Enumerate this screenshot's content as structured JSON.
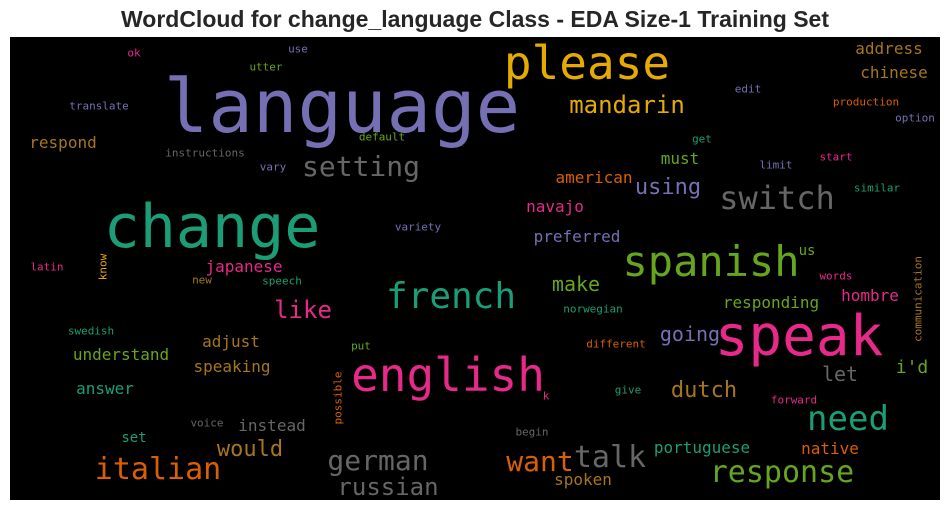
{
  "chart_data": {
    "type": "wordcloud",
    "title": "WordCloud for change_language Class - EDA Size-1 Training Set",
    "background": "#000000",
    "words": [
      {
        "text": "language",
        "color": "#7570b3"
      },
      {
        "text": "please",
        "color": "#e6ab02"
      },
      {
        "text": "change",
        "color": "#1b9e77"
      },
      {
        "text": "speak",
        "color": "#e7298a"
      },
      {
        "text": "english",
        "color": "#e7298a"
      },
      {
        "text": "spanish",
        "color": "#66a61e"
      },
      {
        "text": "french",
        "color": "#1b9e77"
      },
      {
        "text": "switch",
        "color": "#666666"
      },
      {
        "text": "setting",
        "color": "#666666"
      },
      {
        "text": "mandarin",
        "color": "#e6ab02"
      },
      {
        "text": "italian",
        "color": "#d95f02"
      },
      {
        "text": "need",
        "color": "#1b9e77"
      },
      {
        "text": "response",
        "color": "#66a61e"
      },
      {
        "text": "german",
        "color": "#666666"
      },
      {
        "text": "russian",
        "color": "#666666"
      },
      {
        "text": "want",
        "color": "#d95f02"
      },
      {
        "text": "talk",
        "color": "#666666"
      },
      {
        "text": "would",
        "color": "#a6761d"
      },
      {
        "text": "like",
        "color": "#e7298a"
      },
      {
        "text": "using",
        "color": "#7570b3"
      },
      {
        "text": "dutch",
        "color": "#a6761d"
      },
      {
        "text": "make",
        "color": "#66a61e"
      },
      {
        "text": "going",
        "color": "#7570b3"
      },
      {
        "text": "let",
        "color": "#666666"
      },
      {
        "text": "i'd",
        "color": "#66a61e"
      },
      {
        "text": "american",
        "color": "#d95f02"
      },
      {
        "text": "must",
        "color": "#66a61e"
      },
      {
        "text": "navajo",
        "color": "#e7298a"
      },
      {
        "text": "preferred",
        "color": "#7570b3"
      },
      {
        "text": "japanese",
        "color": "#e7298a"
      },
      {
        "text": "understand",
        "color": "#66a61e"
      },
      {
        "text": "adjust",
        "color": "#a6761d"
      },
      {
        "text": "speaking",
        "color": "#a6761d"
      },
      {
        "text": "answer",
        "color": "#1b9e77"
      },
      {
        "text": "instead",
        "color": "#666666"
      },
      {
        "text": "respond",
        "color": "#a6761d"
      },
      {
        "text": "chinese",
        "color": "#a6761d"
      },
      {
        "text": "address",
        "color": "#a6761d"
      },
      {
        "text": "responding",
        "color": "#66a61e"
      },
      {
        "text": "hombre",
        "color": "#e7298a"
      },
      {
        "text": "portuguese",
        "color": "#1b9e77"
      },
      {
        "text": "native",
        "color": "#d95f02"
      },
      {
        "text": "spoken",
        "color": "#a6761d"
      },
      {
        "text": "set",
        "color": "#1b9e77"
      },
      {
        "text": "us",
        "color": "#66a61e"
      },
      {
        "text": "translate",
        "color": "#7570b3"
      },
      {
        "text": "utter",
        "color": "#66a61e"
      },
      {
        "text": "use",
        "color": "#7570b3"
      },
      {
        "text": "ok",
        "color": "#e7298a"
      },
      {
        "text": "default",
        "color": "#66a61e"
      },
      {
        "text": "instructions",
        "color": "#666666"
      },
      {
        "text": "vary",
        "color": "#7570b3"
      },
      {
        "text": "edit",
        "color": "#7570b3"
      },
      {
        "text": "production",
        "color": "#d95f02"
      },
      {
        "text": "option",
        "color": "#7570b3"
      },
      {
        "text": "get",
        "color": "#1b9e77"
      },
      {
        "text": "limit",
        "color": "#7570b3"
      },
      {
        "text": "start",
        "color": "#e7298a"
      },
      {
        "text": "similar",
        "color": "#1b9e77"
      },
      {
        "text": "variety",
        "color": "#7570b3"
      },
      {
        "text": "latin",
        "color": "#e7298a"
      },
      {
        "text": "know",
        "color": "#e6ab02"
      },
      {
        "text": "new",
        "color": "#a6761d"
      },
      {
        "text": "speech",
        "color": "#1b9e77"
      },
      {
        "text": "words",
        "color": "#e7298a"
      },
      {
        "text": "communication",
        "color": "#a6761d"
      },
      {
        "text": "norwegian",
        "color": "#1b9e77"
      },
      {
        "text": "swedish",
        "color": "#1b9e77"
      },
      {
        "text": "put",
        "color": "#66a61e"
      },
      {
        "text": "different",
        "color": "#d95f02"
      },
      {
        "text": "possible",
        "color": "#d95f02"
      },
      {
        "text": "k",
        "color": "#e7298a"
      },
      {
        "text": "give",
        "color": "#1b9e77"
      },
      {
        "text": "voice",
        "color": "#666666"
      },
      {
        "text": "forward",
        "color": "#e7298a"
      },
      {
        "text": "begin",
        "color": "#666666"
      }
    ]
  }
}
